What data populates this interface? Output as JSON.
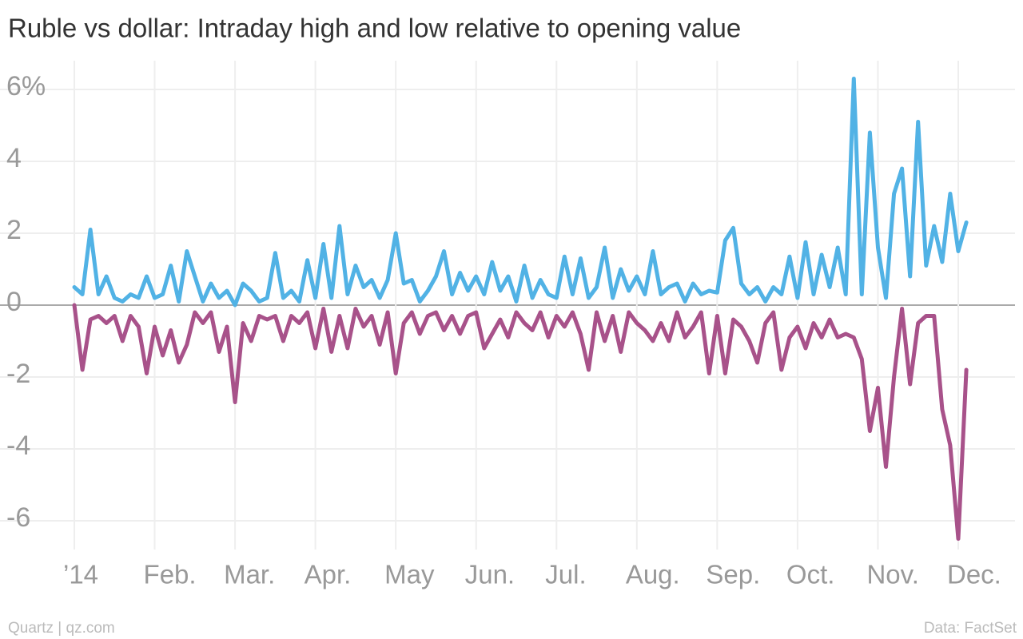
{
  "chart_data": {
    "type": "line",
    "title": "Ruble vs dollar: Intraday high and low relative to opening value",
    "source": "Data: FactSet",
    "credit": "Quartz | qz.com",
    "categories": [
      "’14",
      null,
      null,
      null,
      null,
      null,
      null,
      null,
      null,
      null,
      "Feb.",
      null,
      null,
      null,
      null,
      null,
      null,
      null,
      null,
      null,
      "Mar.",
      null,
      null,
      null,
      null,
      null,
      null,
      null,
      null,
      null,
      "Apr.",
      null,
      null,
      null,
      null,
      null,
      null,
      null,
      null,
      null,
      "May",
      null,
      null,
      null,
      null,
      null,
      null,
      null,
      null,
      null,
      "Jun.",
      null,
      null,
      null,
      null,
      null,
      null,
      null,
      null,
      null,
      "Jul.",
      null,
      null,
      null,
      null,
      null,
      null,
      null,
      null,
      null,
      "Aug.",
      null,
      null,
      null,
      null,
      null,
      null,
      null,
      null,
      null,
      "Sep.",
      null,
      null,
      null,
      null,
      null,
      null,
      null,
      null,
      null,
      "Oct.",
      null,
      null,
      null,
      null,
      null,
      null,
      null,
      null,
      null,
      "Nov.",
      null,
      null,
      null,
      null,
      null,
      null,
      null,
      null,
      null,
      "Dec.",
      null
    ],
    "series": [
      {
        "color": "#51b2e5",
        "values": [
          0.5,
          0.3,
          2.1,
          0.3,
          0.8,
          0.2,
          0.1,
          0.3,
          0.2,
          0.8,
          0.2,
          0.3,
          1.1,
          0.1,
          1.5,
          0.8,
          0.1,
          0.6,
          0.2,
          0.4,
          0.0,
          0.6,
          0.4,
          0.1,
          0.2,
          1.45,
          0.2,
          0.4,
          0.1,
          1.25,
          0.2,
          1.7,
          0.2,
          2.2,
          0.3,
          1.1,
          0.5,
          0.7,
          0.2,
          0.7,
          2.0,
          0.6,
          0.7,
          0.1,
          0.4,
          0.8,
          1.5,
          0.3,
          0.9,
          0.4,
          0.8,
          0.3,
          1.2,
          0.4,
          0.8,
          0.1,
          1.1,
          0.2,
          0.7,
          0.3,
          0.2,
          1.35,
          0.3,
          1.3,
          0.2,
          0.5,
          1.6,
          0.2,
          1.0,
          0.4,
          0.8,
          0.3,
          1.5,
          0.3,
          0.5,
          0.6,
          0.1,
          0.6,
          0.3,
          0.4,
          0.35,
          1.8,
          2.15,
          0.6,
          0.3,
          0.5,
          0.1,
          0.5,
          0.3,
          1.35,
          0.2,
          1.75,
          0.3,
          1.4,
          0.5,
          1.6,
          0.3,
          6.3,
          0.3,
          4.8,
          1.6,
          0.2,
          3.1,
          3.8,
          0.8,
          5.1,
          1.1,
          2.2,
          1.2,
          3.1,
          1.5,
          2.3
        ]
      },
      {
        "color": "#a8528a",
        "values": [
          0,
          -1.8,
          -0.4,
          -0.3,
          -0.5,
          -0.3,
          -1.0,
          -0.3,
          -0.6,
          -1.9,
          -0.6,
          -1.4,
          -0.7,
          -1.6,
          -1.1,
          -0.2,
          -0.5,
          -0.2,
          -1.3,
          -0.6,
          -2.7,
          -0.5,
          -1.0,
          -0.3,
          -0.4,
          -0.3,
          -1.0,
          -0.3,
          -0.5,
          -0.2,
          -1.2,
          -0.1,
          -1.3,
          -0.3,
          -1.2,
          -0.1,
          -0.6,
          -0.3,
          -1.1,
          -0.2,
          -1.9,
          -0.5,
          -0.2,
          -0.8,
          -0.3,
          -0.2,
          -0.7,
          -0.3,
          -0.8,
          -0.3,
          -0.2,
          -1.2,
          -0.8,
          -0.4,
          -0.9,
          -0.2,
          -0.5,
          -0.7,
          -0.2,
          -0.9,
          -0.3,
          -0.6,
          -0.2,
          -0.8,
          -1.8,
          -0.2,
          -1.0,
          -0.3,
          -1.3,
          -0.2,
          -0.5,
          -0.7,
          -1.0,
          -0.5,
          -1.0,
          -0.2,
          -0.9,
          -0.6,
          -0.2,
          -1.9,
          -0.3,
          -1.9,
          -0.4,
          -0.6,
          -1.0,
          -1.6,
          -0.5,
          -0.2,
          -1.8,
          -0.9,
          -0.6,
          -1.2,
          -0.5,
          -0.9,
          -0.4,
          -0.9,
          -0.8,
          -0.9,
          -1.5,
          -3.5,
          -2.3,
          -4.5,
          -2.0,
          -0.1,
          -2.2,
          -0.5,
          -0.3,
          -0.3,
          -2.9,
          -3.9,
          -6.5,
          -1.8
        ]
      }
    ],
    "ylim": [
      -6.8,
      6.8
    ],
    "yticks": [
      -6,
      -4,
      -2,
      0,
      2,
      4,
      {
        "value": 6,
        "label": "6%"
      }
    ],
    "grid": true
  }
}
